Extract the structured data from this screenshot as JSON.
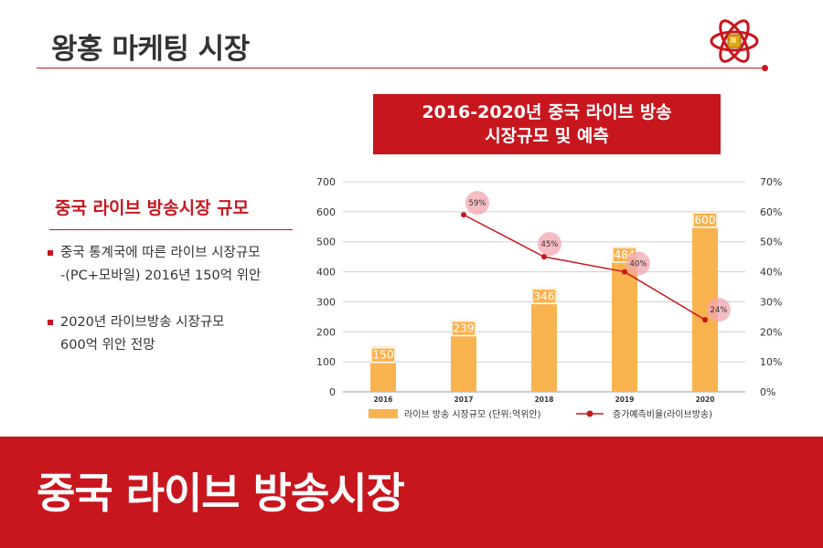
{
  "header": {
    "title": "왕홍 마케팅 시장"
  },
  "chart_box": {
    "line1": "2016-2020년 중국 라이브 방송",
    "line2": "시장규모 및 예측"
  },
  "left_panel": {
    "heading": "중국 라이브 방송시장 규모",
    "bullets": [
      {
        "line1": "중국 통계국에 따른 라이브 시장규모",
        "line2": "-(PC+모바일) 2016년 150억 위안"
      },
      {
        "line1": "2020년 라이브방송 시장규모",
        "line2": "600억 위안 전망"
      }
    ]
  },
  "footer": {
    "title": "중국 라이브 방송시장"
  },
  "colors": {
    "brand_red": "#c8161e",
    "bar": "#f9b34e",
    "line": "#c8161e",
    "bubble": "#f3a5b0"
  },
  "chart_data": {
    "type": "bar",
    "categories": [
      "2016",
      "2017",
      "2018",
      "2019",
      "2020"
    ],
    "series": [
      {
        "name": "라이브 방송 시장규모 (단위:억위안)",
        "type": "bar",
        "axis": "left",
        "values": [
          150,
          239,
          346,
          484,
          600
        ],
        "labels": [
          "150",
          "239",
          "346",
          "484",
          "600"
        ]
      },
      {
        "name": "증가예측비율(라이브방송)",
        "type": "line",
        "axis": "right",
        "x": [
          "2017",
          "2018",
          "2019",
          "2020"
        ],
        "values": [
          59,
          45,
          40,
          24
        ],
        "labels": [
          "59%",
          "45%",
          "40%",
          "24%"
        ]
      }
    ],
    "y_left": {
      "min": 0,
      "max": 700,
      "ticks": [
        "0",
        "100",
        "200",
        "300",
        "400",
        "500",
        "600",
        "700"
      ]
    },
    "y_right": {
      "min": 0,
      "max": 70,
      "ticks": [
        "0%",
        "10%",
        "20%",
        "30%",
        "40%",
        "50%",
        "60%",
        "70%"
      ]
    },
    "grid": true,
    "legend": "bottom"
  }
}
